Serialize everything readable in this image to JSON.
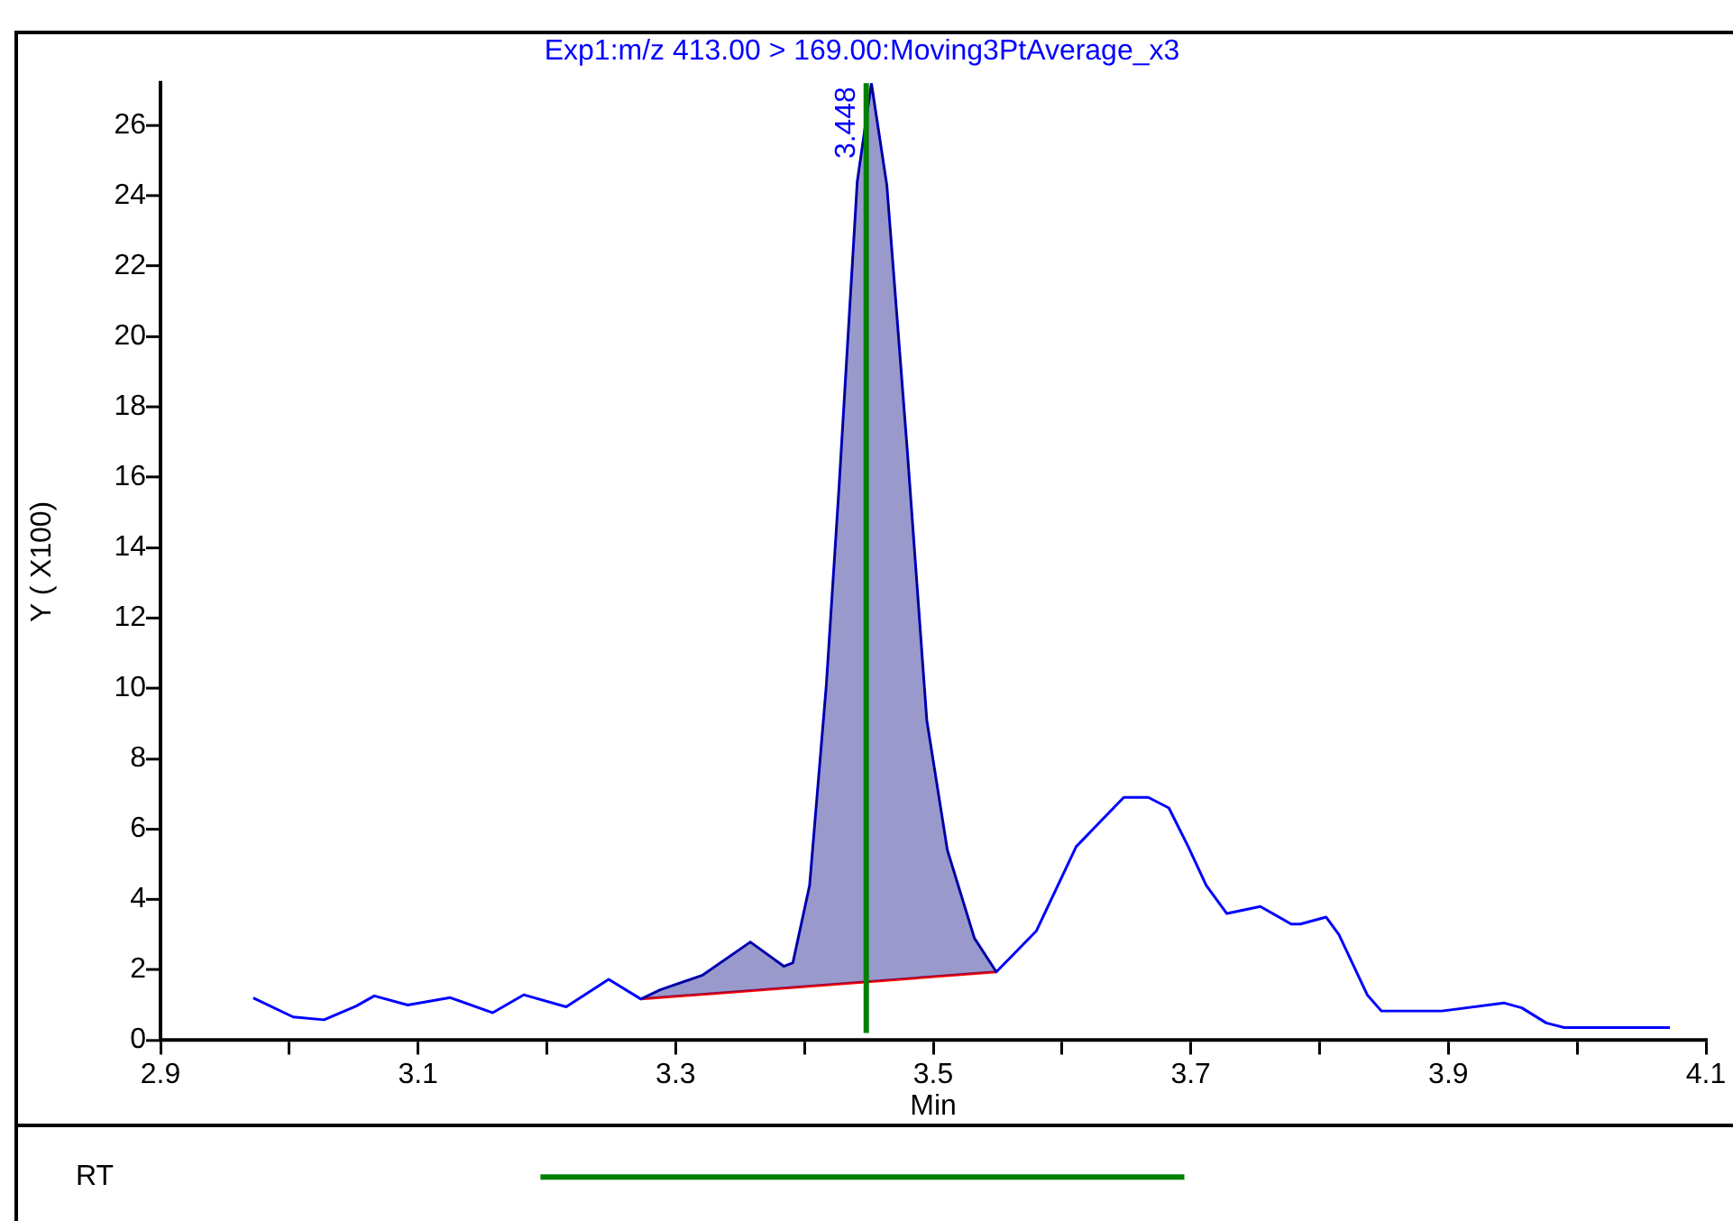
{
  "chart_data": [
    {
      "type": "line",
      "title": "Exp1:m/z 413.00 > 169.00:Moving3PtAverage_x3",
      "xlabel": "Min",
      "ylabel": "Y ( X100)",
      "xlim": [
        2.9,
        4.1
      ],
      "xticks": [
        2.9,
        {
          "value": 3.0,
          "label": null
        },
        3.1,
        {
          "value": 3.2,
          "label": null
        },
        3.3,
        {
          "value": 3.4,
          "label": null
        },
        3.5,
        {
          "value": 3.6,
          "label": null
        },
        3.7,
        {
          "value": 3.8,
          "label": null
        },
        3.9,
        {
          "value": 4.0,
          "label": null
        },
        4.1
      ],
      "ylim": [
        0,
        27.2
      ],
      "yticks": [
        0,
        2,
        4,
        6,
        8,
        10,
        12,
        14,
        16,
        18,
        20,
        22,
        24,
        26
      ],
      "grid": false,
      "legend": false,
      "series": [
        {
          "type": "area",
          "color": "#000080",
          "x": [
            3.273,
            3.288,
            3.321,
            3.358,
            3.384,
            3.391,
            3.404,
            3.417,
            3.427,
            3.441,
            3.452,
            3.464,
            3.48,
            3.495,
            3.511,
            3.532,
            3.549
          ],
          "values": [
            1.17,
            1.43,
            1.85,
            2.79,
            2.1,
            2.2,
            4.4,
            10.1,
            15.8,
            24.4,
            27.2,
            24.3,
            16.7,
            9.1,
            5.4,
            2.9,
            1.94
          ]
        },
        {
          "type": "line",
          "color": "#0000ff",
          "x": [
            2.972,
            3.003,
            3.027,
            3.052,
            3.066,
            3.092,
            3.125,
            3.158,
            3.182,
            3.215,
            3.248,
            3.273,
            3.288,
            3.321,
            3.358,
            3.384,
            3.391,
            3.404,
            3.417,
            3.427,
            3.441,
            3.452,
            3.464,
            3.48,
            3.495,
            3.511,
            3.532,
            3.549,
            3.58,
            3.611,
            3.632,
            3.648,
            3.667,
            3.683,
            3.698,
            3.712,
            3.728,
            3.754,
            3.778,
            3.785,
            3.805,
            3.815,
            3.837,
            3.848,
            3.895,
            3.943,
            3.957,
            3.976,
            3.99,
            4.072
          ],
          "values": [
            1.2,
            0.66,
            0.58,
            0.97,
            1.26,
            1.0,
            1.21,
            0.78,
            1.29,
            0.95,
            1.73,
            1.17,
            1.43,
            1.85,
            2.79,
            2.1,
            2.2,
            4.4,
            10.1,
            15.8,
            24.4,
            27.2,
            24.3,
            16.7,
            9.1,
            5.4,
            2.9,
            1.94,
            3.1,
            5.5,
            6.3,
            6.9,
            6.9,
            6.6,
            5.5,
            4.4,
            3.6,
            3.8,
            3.3,
            3.3,
            3.5,
            3.0,
            1.29,
            0.83,
            0.83,
            1.06,
            0.92,
            0.49,
            0.36,
            0.36
          ]
        },
        {
          "type": "line",
          "color": "#ff0000",
          "x": [
            3.273,
            3.549
          ],
          "values": [
            1.17,
            1.94
          ]
        }
      ],
      "ref_lines": [
        {
          "axis": "x",
          "value": 3.448,
          "label": "3.448",
          "color": "#008000"
        }
      ]
    },
    {
      "type": "bar",
      "orientation": "horizontal",
      "categories": [
        "RT"
      ],
      "base": [
        3.195
      ],
      "values": [
        0.5
      ],
      "color": "#008000",
      "xlim": [
        2.9,
        4.1
      ],
      "xticks": [
        2.9,
        3.1,
        3.3,
        3.5,
        3.7,
        3.9,
        4.1
      ],
      "tick_labels": "y"
    }
  ]
}
